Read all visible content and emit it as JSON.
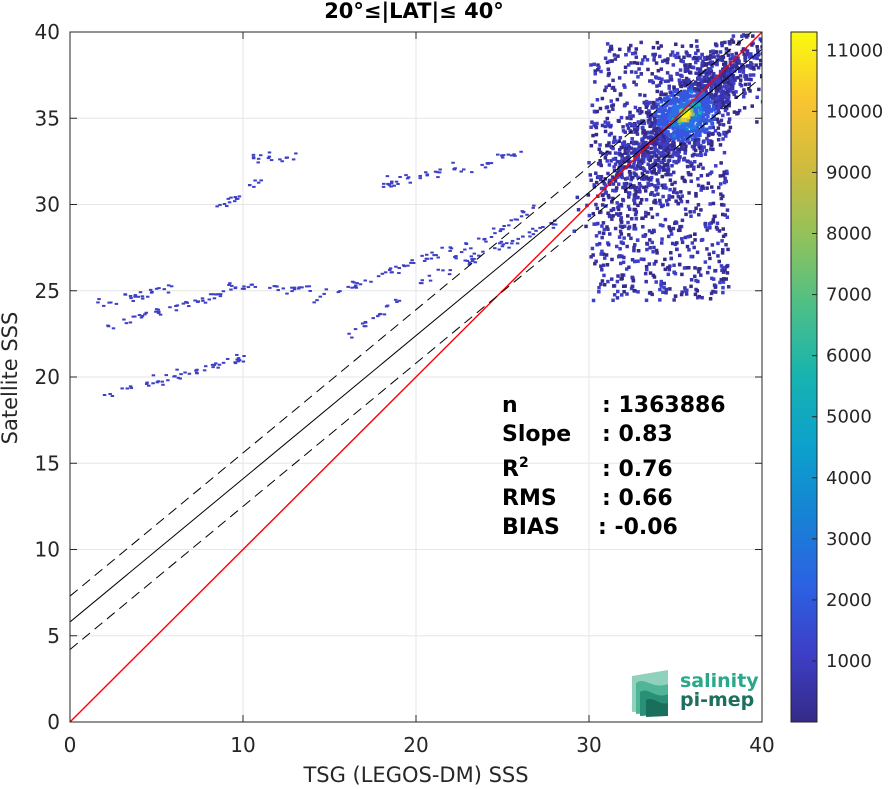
{
  "chart_data": {
    "type": "heatmap",
    "title": "20°≤|LAT|≤ 40°",
    "xlabel": "TSG (LEGOS-DM) SSS",
    "ylabel": "Satellite SSS",
    "xlim": [
      0,
      40
    ],
    "ylim": [
      0,
      40
    ],
    "xticks": [
      "0",
      "10",
      "20",
      "30",
      "40"
    ],
    "yticks": [
      "0",
      "5",
      "10",
      "15",
      "20",
      "25",
      "30",
      "35",
      "40"
    ],
    "grid": true,
    "colorbar": {
      "min": 1,
      "max": 11300,
      "ticks": [
        "1000",
        "2000",
        "3000",
        "4000",
        "5000",
        "6000",
        "7000",
        "8000",
        "9000",
        "10000",
        "11000"
      ],
      "colormap": "parula"
    },
    "lines": [
      {
        "name": "identity",
        "color": "#ff0000",
        "x": [
          0,
          40
        ],
        "y": [
          0,
          40
        ],
        "style": "solid"
      },
      {
        "name": "fit",
        "color": "#000000",
        "x": [
          0,
          40
        ],
        "y": [
          5.8,
          39.0
        ],
        "style": "solid"
      },
      {
        "name": "fit-upper",
        "color": "#000000",
        "x": [
          0,
          40
        ],
        "y": [
          7.3,
          40.5
        ],
        "style": "dashed"
      },
      {
        "name": "fit-lower",
        "color": "#000000",
        "x": [
          0,
          40
        ],
        "y": [
          4.2,
          37.4
        ],
        "style": "dashed"
      }
    ],
    "stats": [
      {
        "label": "n",
        "value": ": 1363886"
      },
      {
        "label": "Slope",
        "value": ": 0.83"
      },
      {
        "label": "R",
        "sup": "2",
        "value": ": 0.76"
      },
      {
        "label": "RMS",
        "value": ": 0.66"
      },
      {
        "label": "BIAS",
        "value": ": -0.06"
      }
    ],
    "density_regions": [
      {
        "x": [
          26.5,
          40
        ],
        "y": [
          24,
          40
        ],
        "core": [
          35.5,
          35.3
        ],
        "peak": 11300
      },
      {
        "x": [
          1.5,
          26
        ],
        "y": [
          18.8,
          33
        ],
        "note": "sparse"
      }
    ]
  },
  "logo": {
    "line1": "salinity",
    "line2": "pi-mep"
  }
}
